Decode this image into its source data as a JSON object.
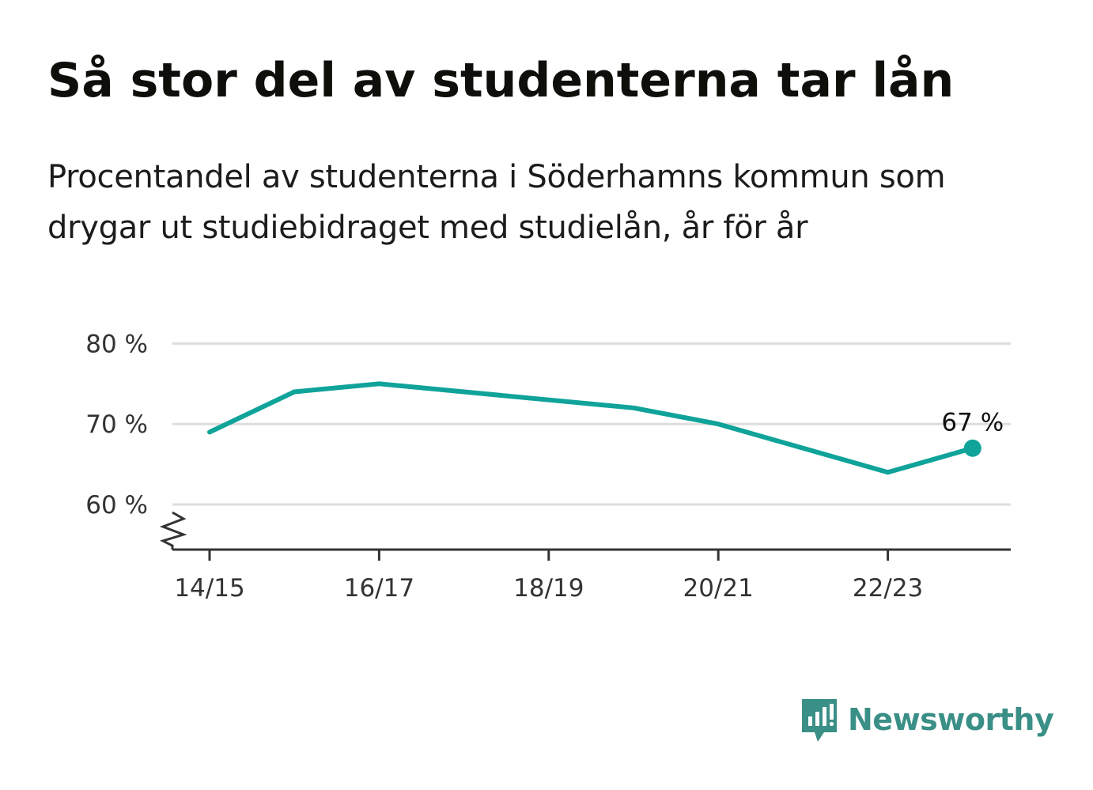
{
  "title": "Så stor del av studenterna tar lån",
  "subtitle": "Procentandel av studenterna i Söderhamns kommun som drygar ut studiebidraget med studielån, år för år",
  "brand": {
    "name": "Newsworthy",
    "icon": "newsworthy-logo-icon",
    "color": "#3a8f86"
  },
  "colors": {
    "line": "#0fa39a",
    "grid": "#dddddd",
    "axis": "#333333"
  },
  "chart_data": {
    "type": "line",
    "title": "Så stor del av studenterna tar lån",
    "subtitle": "Procentandel av studenterna i Söderhamns kommun som drygar ut studiebidraget med studielån, år för år",
    "x": [
      "14/15",
      "15/16",
      "16/17",
      "17/18",
      "18/19",
      "19/20",
      "20/21",
      "21/22",
      "22/23",
      "23/24"
    ],
    "x_tick_labels": [
      "14/15",
      "16/17",
      "18/19",
      "20/21",
      "22/23"
    ],
    "series": [
      {
        "values": [
          69,
          74,
          75,
          74,
          73,
          72,
          70,
          67,
          64,
          67
        ]
      }
    ],
    "y_ticks": [
      60,
      70,
      80
    ],
    "y_tick_labels": [
      "60 %",
      "70 %",
      "80 %"
    ],
    "ylim": [
      54.5,
      80
    ],
    "y_axis_break": true,
    "grid": true,
    "annotations": [
      {
        "x": "23/24",
        "text": "67 %"
      }
    ]
  }
}
